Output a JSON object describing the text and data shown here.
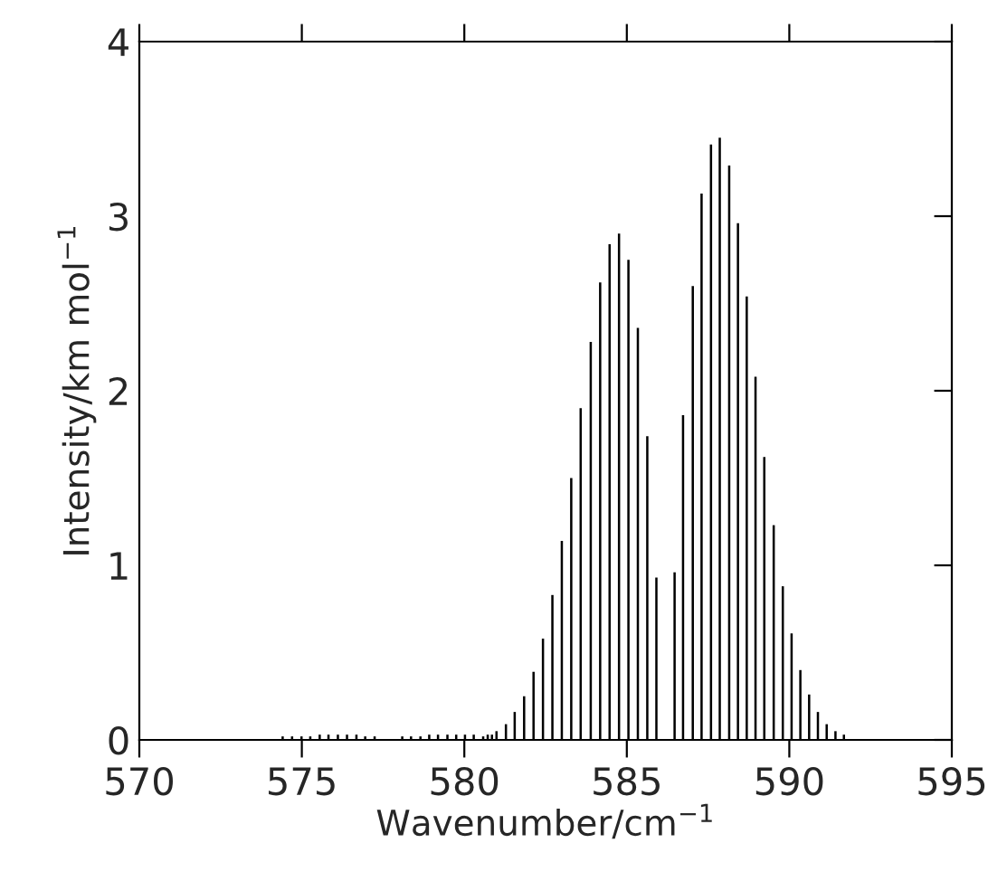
{
  "chart_data": {
    "type": "bar",
    "xlabel": "Wavenumber/cm$^{−1}$",
    "ylabel": "Intensity/km mol$^{−1}$",
    "x": [
      574.41,
      574.7,
      574.99,
      575.26,
      575.55,
      575.82,
      576.11,
      576.39,
      576.68,
      576.95,
      577.24,
      578.09,
      578.36,
      578.65,
      578.92,
      579.19,
      579.48,
      579.75,
      580.02,
      580.29,
      580.58,
      580.72,
      580.85,
      580.99,
      581.28,
      581.55,
      581.84,
      582.13,
      582.42,
      582.71,
      583.0,
      583.29,
      583.58,
      583.89,
      584.18,
      584.47,
      584.76,
      585.05,
      585.34,
      585.63,
      585.91,
      586.47,
      586.73,
      587.03,
      587.3,
      587.59,
      587.86,
      588.15,
      588.42,
      588.69,
      588.96,
      589.23,
      589.52,
      589.8,
      590.07,
      590.34,
      590.61,
      590.88,
      591.15,
      591.42,
      591.68
    ],
    "series": [
      {
        "color": "#000000",
        "values": [
          0.02,
          0.02,
          0.02,
          0.02,
          0.03,
          0.03,
          0.03,
          0.03,
          0.03,
          0.02,
          0.02,
          0.02,
          0.02,
          0.02,
          0.03,
          0.03,
          0.03,
          0.03,
          0.03,
          0.03,
          0.02,
          0.03,
          0.03,
          0.05,
          0.09,
          0.16,
          0.25,
          0.39,
          0.58,
          0.83,
          1.14,
          1.5,
          1.9,
          2.28,
          2.62,
          2.84,
          2.9,
          2.75,
          2.36,
          1.74,
          0.93,
          0.96,
          1.86,
          2.6,
          3.13,
          3.41,
          3.45,
          3.29,
          2.96,
          2.54,
          2.08,
          1.62,
          1.23,
          0.88,
          0.61,
          0.4,
          0.26,
          0.16,
          0.09,
          0.05,
          0.03
        ]
      }
    ],
    "xlim": [
      570,
      595
    ],
    "xticks": [
      570,
      575,
      580,
      585,
      590,
      595
    ],
    "ylim": [
      0,
      4
    ],
    "yticks": [
      0,
      1,
      2,
      3,
      4
    ],
    "grid": false,
    "legend": false
  }
}
